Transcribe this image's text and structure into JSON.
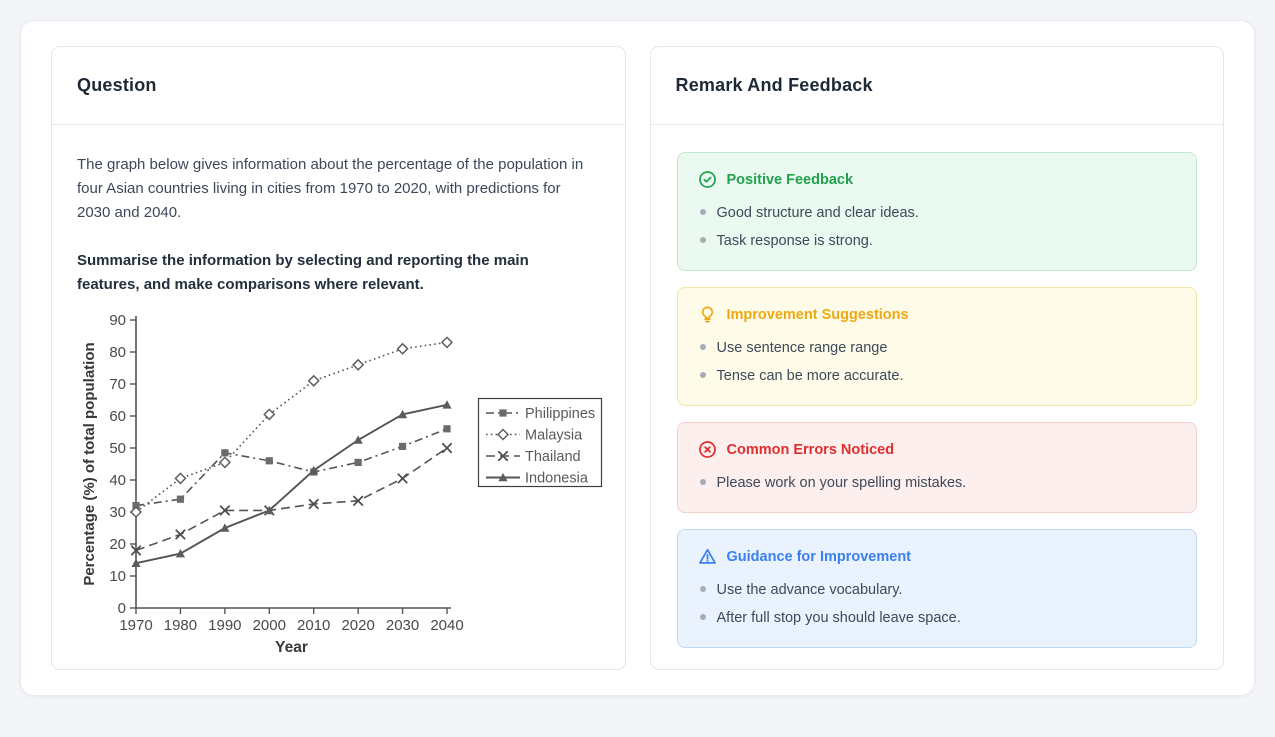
{
  "question_panel": {
    "title": "Question",
    "paragraph": "The graph below gives information about the percentage of the population in four Asian countries living in cities from 1970 to 2020, with predictions for 2030 and 2040.",
    "prompt_bold": "Summarise the information by selecting and reporting the main features, and make comparisons where relevant."
  },
  "feedback_panel": {
    "title": "Remark And Feedback",
    "sections": [
      {
        "title": "Positive Feedback",
        "icon": "check-circle-icon",
        "accent": "#22a14e",
        "bg": "#eafaf0",
        "border": "#c2e9cf",
        "items": [
          "Good structure and clear ideas.",
          "Task response is strong."
        ]
      },
      {
        "title": "Improvement Suggestions",
        "icon": "lightbulb-icon",
        "accent": "#efa90f",
        "bg": "#fefbe8",
        "border": "#f2e3a6",
        "items": [
          "Use sentence range range",
          "Tense can be more accurate."
        ]
      },
      {
        "title": "Common Errors Noticed",
        "icon": "x-circle-icon",
        "accent": "#e02f2f",
        "bg": "#fcefee",
        "border": "#f4d0cd",
        "items": [
          "Please work on your spelling mistakes."
        ]
      },
      {
        "title": "Guidance for Improvement",
        "icon": "warning-triangle-icon",
        "accent": "#3b80f0",
        "bg": "#e9f2fd",
        "border": "#bed9f6",
        "items": [
          "Use the advance vocabulary.",
          "After full stop you should leave space."
        ]
      }
    ]
  },
  "chart_data": {
    "type": "line",
    "title": "",
    "xlabel": "Year",
    "ylabel": "Percentage (%) of total population",
    "x": [
      1970,
      1980,
      1990,
      2000,
      2010,
      2020,
      2030,
      2040
    ],
    "ylim": [
      0,
      90
    ],
    "ytick_step": 10,
    "grid": false,
    "legend_position": "right-box",
    "ink_color": "#555555",
    "series": [
      {
        "name": "Philippines",
        "line_style": "dashdot",
        "marker": "square",
        "values": [
          32,
          34,
          48.5,
          46,
          42.5,
          45.5,
          50.5,
          56
        ]
      },
      {
        "name": "Malaysia",
        "line_style": "dotted",
        "marker": "diamond-open",
        "values": [
          30,
          40.5,
          45.5,
          60.5,
          71,
          76,
          81,
          83
        ]
      },
      {
        "name": "Thailand",
        "line_style": "dashed",
        "marker": "x",
        "values": [
          18,
          23,
          30.5,
          30.5,
          32.5,
          33.5,
          40.5,
          50
        ]
      },
      {
        "name": "Indonesia",
        "line_style": "solid",
        "marker": "triangle",
        "values": [
          14,
          17,
          25,
          30.5,
          43,
          52.5,
          60.5,
          63.5
        ]
      }
    ]
  }
}
